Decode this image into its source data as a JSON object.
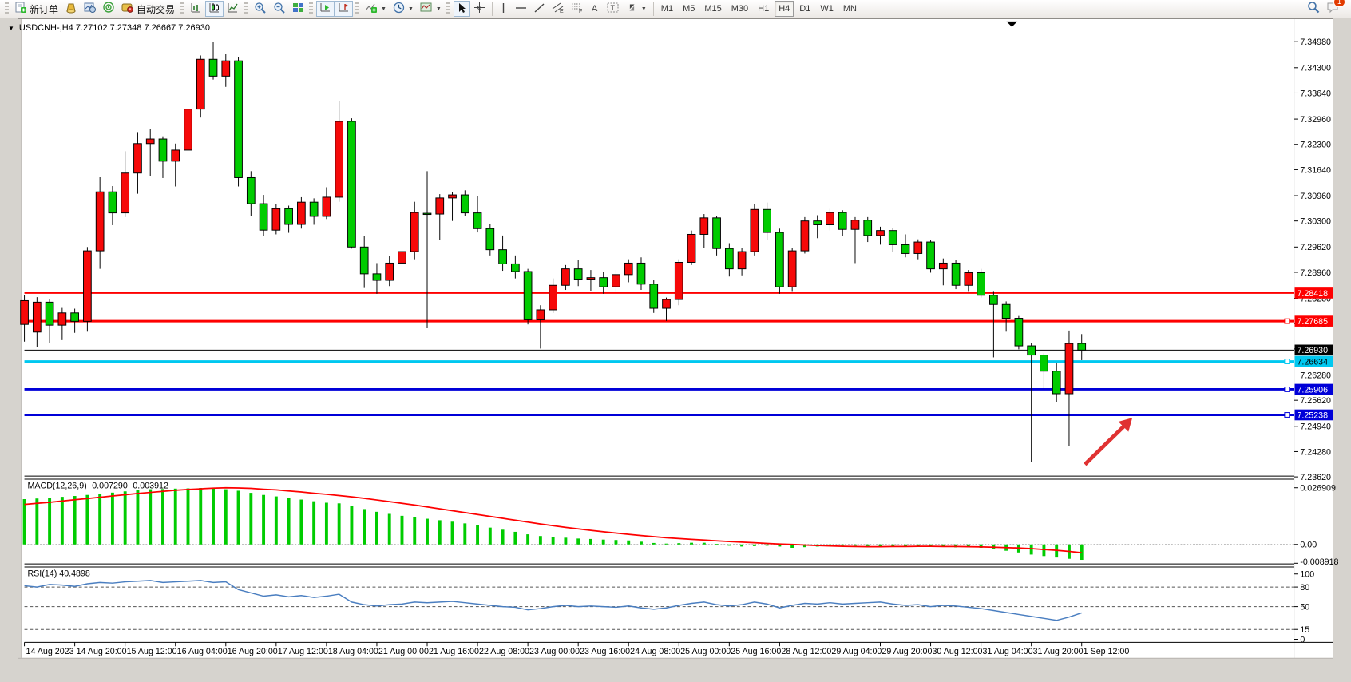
{
  "toolbar": {
    "new_order_label": "新订单",
    "autotrading_label": "自动交易",
    "timeframes": [
      "M1",
      "M5",
      "M15",
      "M30",
      "H1",
      "H4",
      "D1",
      "W1",
      "MN"
    ],
    "active_timeframe": "H4",
    "notification_badge": "1"
  },
  "chart": {
    "title_line": "USDCNH-,H4  7.27102 7.27348 7.26667 7.26930"
  },
  "chart_data": {
    "type": "candlestick",
    "symbol": "USDCNH-",
    "timeframe": "H4",
    "title": "USDCNH-,H4  7.27102 7.27348 7.26667 7.26930",
    "current_ohlc": {
      "open": 7.27102,
      "high": 7.27348,
      "low": 7.26667,
      "close": 7.2693
    },
    "up_color": "#f60909",
    "down_color": "#00cc00",
    "price_axis": {
      "min": 7.2362,
      "max": 7.3498,
      "ticks": [
        "7.34980",
        "7.34300",
        "7.33640",
        "7.32960",
        "7.32300",
        "7.31640",
        "7.30960",
        "7.30300",
        "7.29620",
        "7.28960",
        "7.28280",
        "7.27620",
        "7.26960",
        "7.26280",
        "7.25620",
        "7.24940",
        "7.24280",
        "7.23620"
      ]
    },
    "x_labels": [
      "14 Aug 2023",
      "14 Aug 20:00",
      "15 Aug 12:00",
      "16 Aug 04:00",
      "16 Aug 20:00",
      "17 Aug 12:00",
      "18 Aug 04:00",
      "21 Aug 00:00",
      "21 Aug 16:00",
      "22 Aug 08:00",
      "23 Aug 00:00",
      "23 Aug 16:00",
      "24 Aug 08:00",
      "25 Aug 00:00",
      "25 Aug 16:00",
      "28 Aug 12:00",
      "29 Aug 04:00",
      "29 Aug 20:00",
      "30 Aug 12:00",
      "31 Aug 04:00",
      "31 Aug 20:00",
      "1 Sep 12:00"
    ],
    "horizontal_lines": [
      {
        "price": 7.28418,
        "label": "7.28418",
        "color": "#fe0000",
        "width": 2,
        "text": "#ffffff",
        "handle": false
      },
      {
        "price": 7.27685,
        "label": "7.27685",
        "color": "#fe0000",
        "width": 3,
        "text": "#ffffff",
        "handle": true
      },
      {
        "price": 7.2693,
        "label": "7.26930",
        "color": "#000000",
        "width": 1,
        "text": "#ffffff",
        "handle": false
      },
      {
        "price": 7.26634,
        "label": "7.26634",
        "color": "#00c8f0",
        "width": 3,
        "text": "#000000",
        "handle": true
      },
      {
        "price": 7.25906,
        "label": "7.25906",
        "color": "#0000d8",
        "width": 3,
        "text": "#ffffff",
        "handle": true
      },
      {
        "price": 7.25238,
        "label": "7.25238",
        "color": "#0000d8",
        "width": 3,
        "text": "#ffffff",
        "handle": true
      }
    ],
    "candles": [
      [
        7.276,
        7.2836,
        7.2715,
        7.2822
      ],
      [
        7.274,
        7.2831,
        7.2701,
        7.2818
      ],
      [
        7.2818,
        7.2826,
        7.2712,
        7.2758
      ],
      [
        7.2758,
        7.2803,
        7.2719,
        7.279
      ],
      [
        7.279,
        7.2801,
        7.2738,
        7.2768
      ],
      [
        7.2768,
        7.2962,
        7.2741,
        7.2952
      ],
      [
        7.2952,
        7.3144,
        7.2905,
        7.3106
      ],
      [
        7.3106,
        7.3121,
        7.3019,
        7.3051
      ],
      [
        7.3051,
        7.3212,
        7.304,
        7.3155
      ],
      [
        7.3155,
        7.3262,
        7.3101,
        7.3232
      ],
      [
        7.3232,
        7.327,
        7.3148,
        7.3244
      ],
      [
        7.3244,
        7.3251,
        7.3142,
        7.3186
      ],
      [
        7.3186,
        7.3232,
        7.312,
        7.3215
      ],
      [
        7.3215,
        7.3341,
        7.319,
        7.3322
      ],
      [
        7.3322,
        7.3462,
        7.33,
        7.3452
      ],
      [
        7.3452,
        7.3498,
        7.3399,
        7.3408
      ],
      [
        7.3408,
        7.3466,
        7.338,
        7.3448
      ],
      [
        7.3448,
        7.3458,
        7.312,
        7.3143
      ],
      [
        7.3143,
        7.316,
        7.3042,
        7.3075
      ],
      [
        7.3075,
        7.3098,
        7.299,
        7.3006
      ],
      [
        7.3006,
        7.3075,
        7.2995,
        7.3062
      ],
      [
        7.3062,
        7.307,
        7.2999,
        7.3021
      ],
      [
        7.3021,
        7.3092,
        7.301,
        7.3079
      ],
      [
        7.3079,
        7.3089,
        7.302,
        7.3042
      ],
      [
        7.3042,
        7.3118,
        7.3035,
        7.3092
      ],
      [
        7.3092,
        7.3342,
        7.308,
        7.329
      ],
      [
        7.329,
        7.3298,
        7.2958,
        7.2962
      ],
      [
        7.2962,
        7.299,
        7.2855,
        7.2892
      ],
      [
        7.2892,
        7.292,
        7.284,
        7.2875
      ],
      [
        7.2875,
        7.2938,
        7.286,
        7.292
      ],
      [
        7.292,
        7.2965,
        7.289,
        7.295
      ],
      [
        7.295,
        7.308,
        7.293,
        7.3052
      ],
      [
        7.305,
        7.316,
        7.275,
        7.3048
      ],
      [
        7.3048,
        7.31,
        7.298,
        7.309
      ],
      [
        7.309,
        7.3105,
        7.303,
        7.3098
      ],
      [
        7.3098,
        7.311,
        7.3044,
        7.3051
      ],
      [
        7.3051,
        7.3095,
        7.3,
        7.301
      ],
      [
        7.301,
        7.3022,
        7.294,
        7.2955
      ],
      [
        7.2955,
        7.2992,
        7.29,
        7.2918
      ],
      [
        7.2918,
        7.294,
        7.288,
        7.2898
      ],
      [
        7.2898,
        7.2905,
        7.276,
        7.2772
      ],
      [
        7.2772,
        7.281,
        7.2697,
        7.2798
      ],
      [
        7.2798,
        7.288,
        7.279,
        7.2862
      ],
      [
        7.2862,
        7.2915,
        7.285,
        7.2905
      ],
      [
        7.2905,
        7.2928,
        7.286,
        7.2878
      ],
      [
        7.2878,
        7.2902,
        7.2848,
        7.2882
      ],
      [
        7.2882,
        7.2898,
        7.284,
        7.2858
      ],
      [
        7.2858,
        7.2902,
        7.2845,
        7.289
      ],
      [
        7.289,
        7.293,
        7.287,
        7.292
      ],
      [
        7.292,
        7.2935,
        7.285,
        7.2865
      ],
      [
        7.2865,
        7.2875,
        7.279,
        7.2802
      ],
      [
        7.2802,
        7.283,
        7.2769,
        7.2825
      ],
      [
        7.2825,
        7.293,
        7.281,
        7.2922
      ],
      [
        7.2922,
        7.3005,
        7.2915,
        7.2995
      ],
      [
        7.2995,
        7.3048,
        7.296,
        7.3038
      ],
      [
        7.3038,
        7.3042,
        7.294,
        7.2958
      ],
      [
        7.2958,
        7.2972,
        7.2885,
        7.2905
      ],
      [
        7.2905,
        7.296,
        7.2888,
        7.295
      ],
      [
        7.295,
        7.3075,
        7.294,
        7.306
      ],
      [
        7.306,
        7.3078,
        7.298,
        7.3
      ],
      [
        7.3,
        7.301,
        7.284,
        7.2858
      ],
      [
        7.2858,
        7.296,
        7.2845,
        7.2952
      ],
      [
        7.2952,
        7.304,
        7.2945,
        7.303
      ],
      [
        7.303,
        7.3045,
        7.2985,
        7.302
      ],
      [
        7.302,
        7.3062,
        7.3005,
        7.3052
      ],
      [
        7.3052,
        7.3058,
        7.299,
        7.3008
      ],
      [
        7.3008,
        7.304,
        7.292,
        7.3032
      ],
      [
        7.3032,
        7.304,
        7.2975,
        7.2992
      ],
      [
        7.2992,
        7.3015,
        7.2968,
        7.3005
      ],
      [
        7.3005,
        7.3012,
        7.295,
        7.2968
      ],
      [
        7.2968,
        7.2995,
        7.2935,
        7.2945
      ],
      [
        7.2945,
        7.2982,
        7.293,
        7.2975
      ],
      [
        7.2975,
        7.298,
        7.2895,
        7.2905
      ],
      [
        7.2905,
        7.2932,
        7.2862,
        7.292
      ],
      [
        7.292,
        7.2928,
        7.2852,
        7.2862
      ],
      [
        7.2862,
        7.2902,
        7.2845,
        7.2895
      ],
      [
        7.2895,
        7.2905,
        7.283,
        7.2836
      ],
      [
        7.2836,
        7.2845,
        7.2674,
        7.2812
      ],
      [
        7.2812,
        7.282,
        7.2741,
        7.2776
      ],
      [
        7.2776,
        7.2782,
        7.2695,
        7.2704
      ],
      [
        7.2704,
        7.2712,
        7.24,
        7.268
      ],
      [
        7.268,
        7.2685,
        7.2593,
        7.2638
      ],
      [
        7.2638,
        7.266,
        7.2557,
        7.2579
      ],
      [
        7.2579,
        7.2744,
        7.2443,
        7.271
      ],
      [
        7.27102,
        7.27348,
        7.26667,
        7.2693
      ]
    ],
    "macd": {
      "label": "MACD(12,26,9)",
      "values_text": "-0.007290 -0.003912",
      "main_value": -0.00729,
      "signal_value": -0.003912,
      "axis_labels": [
        "0.026909",
        "0.00",
        "-0.008918"
      ],
      "axis_values": [
        0.026909,
        0.0,
        -0.008918
      ],
      "histogram_color": "#00cc00",
      "signal_color": "#fe0000",
      "histogram": [
        0.0215,
        0.0218,
        0.0222,
        0.0226,
        0.023,
        0.0235,
        0.024,
        0.0246,
        0.0252,
        0.0257,
        0.0262,
        0.0263,
        0.0265,
        0.0266,
        0.0268,
        0.0266,
        0.0262,
        0.0255,
        0.0245,
        0.0235,
        0.0228,
        0.022,
        0.0213,
        0.0205,
        0.0198,
        0.0195,
        0.0182,
        0.0168,
        0.0155,
        0.0145,
        0.0136,
        0.013,
        0.0122,
        0.0115,
        0.0108,
        0.01,
        0.009,
        0.008,
        0.007,
        0.006,
        0.0048,
        0.004,
        0.0035,
        0.0032,
        0.0028,
        0.0026,
        0.0023,
        0.0021,
        0.0019,
        0.0013,
        0.0007,
        0.0004,
        0.0006,
        0.0008,
        0.0008,
        0.0002,
        -0.0006,
        -0.001,
        -0.0008,
        -0.0006,
        -0.001,
        -0.0016,
        -0.0013,
        -0.001,
        -0.0008,
        -0.0006,
        -0.0006,
        -0.0008,
        -0.0009,
        -0.001,
        -0.0012,
        -0.0011,
        -0.001,
        -0.0012,
        -0.0014,
        -0.0013,
        -0.0016,
        -0.0022,
        -0.003,
        -0.0038,
        -0.0048,
        -0.0055,
        -0.0062,
        -0.0068,
        -0.00729
      ],
      "signal": [
        0.019,
        0.0195,
        0.02,
        0.0206,
        0.0212,
        0.0218,
        0.0224,
        0.023,
        0.0236,
        0.0242,
        0.0247,
        0.0252,
        0.0257,
        0.0261,
        0.0264,
        0.0267,
        0.0269,
        0.0268,
        0.0266,
        0.0262,
        0.0259,
        0.0254,
        0.0249,
        0.0243,
        0.0238,
        0.0232,
        0.0226,
        0.0219,
        0.0211,
        0.0203,
        0.0195,
        0.0187,
        0.0178,
        0.0169,
        0.016,
        0.0151,
        0.0142,
        0.0133,
        0.0124,
        0.0115,
        0.0106,
        0.0097,
        0.0089,
        0.0081,
        0.0074,
        0.0067,
        0.006,
        0.0054,
        0.0048,
        0.0042,
        0.0037,
        0.0032,
        0.0028,
        0.0024,
        0.0021,
        0.0017,
        0.0014,
        0.0011,
        0.0008,
        0.0005,
        0.0002,
        0.0,
        -0.0003,
        -0.0005,
        -0.0007,
        -0.0009,
        -0.001,
        -0.0011,
        -0.0011,
        -0.001,
        -0.001,
        -0.0009,
        -0.0009,
        -0.001,
        -0.001,
        -0.0011,
        -0.0012,
        -0.0013,
        -0.0015,
        -0.0017,
        -0.002,
        -0.0024,
        -0.0028,
        -0.0033,
        -0.003912
      ]
    },
    "rsi": {
      "label": "RSI(14)",
      "value_text": "40.4898",
      "value": 40.4898,
      "line_color": "#4a7ec0",
      "levels": [
        "100",
        "80",
        "50",
        "15",
        "0"
      ],
      "level_values": [
        100,
        80,
        50,
        15,
        0
      ],
      "dashed_levels": [
        80,
        50,
        15
      ],
      "series": [
        82,
        80,
        84,
        83,
        81,
        85,
        87,
        86,
        88,
        89,
        90,
        87,
        88,
        89,
        90,
        87,
        88,
        76,
        71,
        66,
        68,
        65,
        67,
        64,
        66,
        69,
        57,
        53,
        51,
        53,
        54,
        57,
        56,
        57,
        58,
        56,
        54,
        52,
        50,
        49,
        45,
        47,
        50,
        52,
        50,
        51,
        50,
        49,
        51,
        48,
        46,
        48,
        52,
        55,
        57,
        53,
        51,
        53,
        57,
        54,
        48,
        52,
        55,
        54,
        56,
        54,
        55,
        56,
        57,
        54,
        52,
        53,
        50,
        52,
        51,
        49,
        47,
        44,
        41,
        38,
        35,
        32,
        29,
        34,
        40.49
      ]
    },
    "annotation_arrow": {
      "color": "#e03232",
      "direction": "up-right"
    }
  }
}
